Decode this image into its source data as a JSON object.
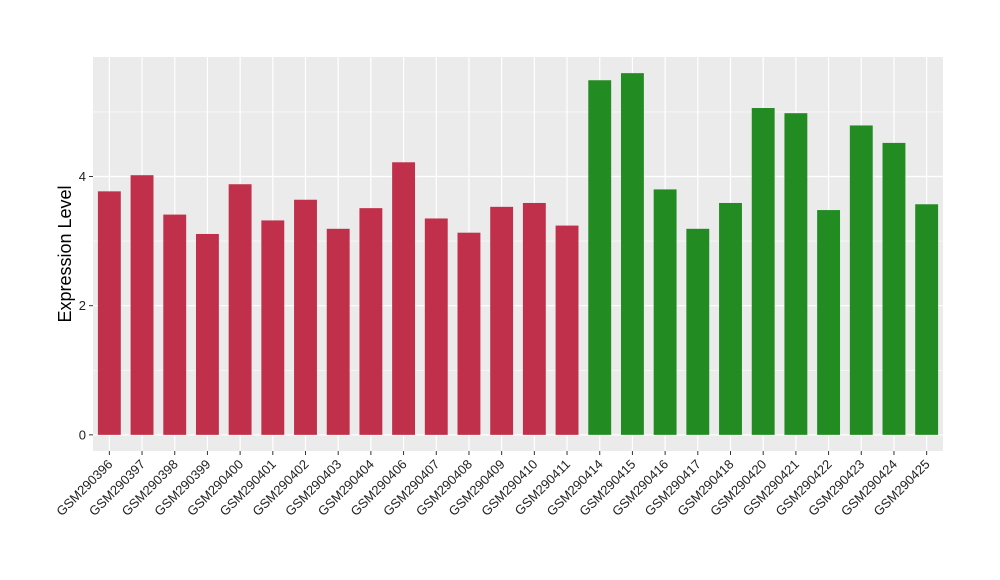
{
  "chart_data": {
    "type": "bar",
    "title": "",
    "xlabel": "",
    "ylabel": "Expression Level",
    "ylim": [
      -0.25,
      5.85
    ],
    "yticks": [
      0,
      2,
      4
    ],
    "grid": true,
    "categories": [
      "GSM290396",
      "GSM290397",
      "GSM290398",
      "GSM290399",
      "GSM290400",
      "GSM290401",
      "GSM290402",
      "GSM290403",
      "GSM290404",
      "GSM290406",
      "GSM290407",
      "GSM290408",
      "GSM290409",
      "GSM290410",
      "GSM290411",
      "GSM290414",
      "GSM290415",
      "GSM290416",
      "GSM290417",
      "GSM290418",
      "GSM290420",
      "GSM290421",
      "GSM290422",
      "GSM290423",
      "GSM290424",
      "GSM290425"
    ],
    "values": [
      3.77,
      4.02,
      3.41,
      3.11,
      3.88,
      3.32,
      3.64,
      3.19,
      3.51,
      4.22,
      3.35,
      3.13,
      3.53,
      3.59,
      3.24,
      5.49,
      5.6,
      3.8,
      3.19,
      3.59,
      5.06,
      4.98,
      3.48,
      4.79,
      4.52,
      3.57
    ],
    "colors": [
      "#C0304A",
      "#C0304A",
      "#C0304A",
      "#C0304A",
      "#C0304A",
      "#C0304A",
      "#C0304A",
      "#C0304A",
      "#C0304A",
      "#C0304A",
      "#C0304A",
      "#C0304A",
      "#C0304A",
      "#C0304A",
      "#C0304A",
      "#228B22",
      "#228B22",
      "#228B22",
      "#228B22",
      "#228B22",
      "#228B22",
      "#228B22",
      "#228B22",
      "#228B22",
      "#228B22",
      "#228B22"
    ]
  }
}
